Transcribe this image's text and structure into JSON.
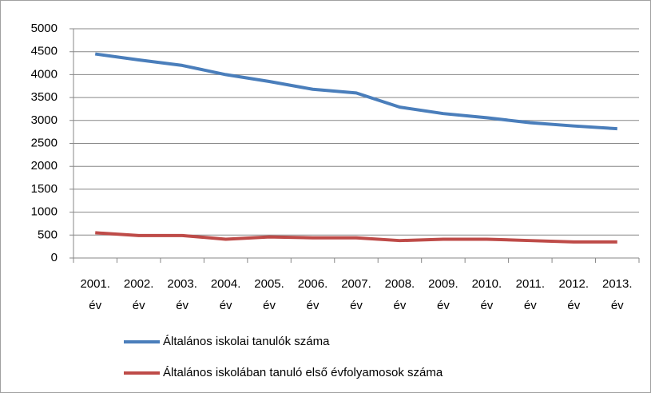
{
  "chart_data": {
    "type": "line",
    "categories": [
      "2001. év",
      "2002. év",
      "2003. év",
      "2004. év",
      "2005. év",
      "2006. év",
      "2007. év",
      "2008. év",
      "2009. év",
      "2010. év",
      "2011. év",
      "2012. év",
      "2013. év"
    ],
    "series": [
      {
        "name": "Általános iskolai tanulók száma",
        "color": "#4a7ebb",
        "values": [
          4450,
          4320,
          4200,
          4000,
          3850,
          3680,
          3600,
          3290,
          3150,
          3060,
          2950,
          2880,
          2820
        ]
      },
      {
        "name": "Általános iskolában  tanuló első évfolyamosok száma",
        "color": "#be4b48",
        "values": [
          550,
          490,
          490,
          410,
          460,
          440,
          440,
          380,
          410,
          410,
          380,
          350,
          350
        ]
      }
    ],
    "ylim": [
      0,
      5000
    ],
    "yticks": [
      0,
      500,
      1000,
      1500,
      2000,
      2500,
      3000,
      3500,
      4000,
      4500,
      5000
    ],
    "grid": true,
    "legend": "bottom"
  }
}
